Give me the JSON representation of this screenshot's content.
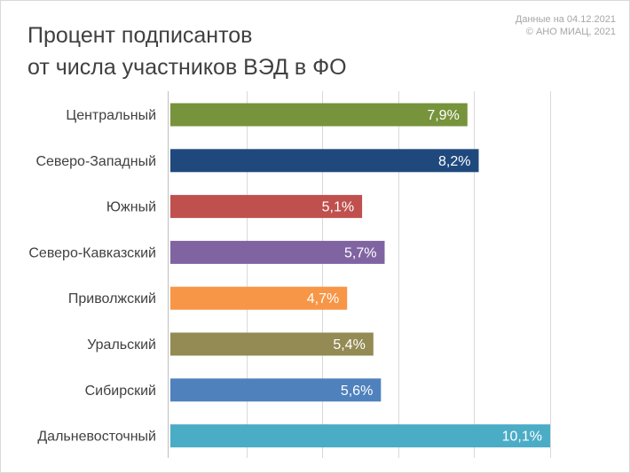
{
  "header": {
    "title_line1": "Процент подписантов",
    "title_line2": "от числа участников ВЭД в ФО",
    "source_line1": "Данные на 04.12.2021",
    "source_line2": "© АНО МИАЦ, 2021"
  },
  "chart_data": {
    "type": "bar",
    "orientation": "horizontal",
    "title": "Процент подписантов от числа участников ВЭД в ФО",
    "categories": [
      "Центральный",
      "Северо-Западный",
      "Южный",
      "Северо-Кавказский",
      "Приволжский",
      "Уральский",
      "Сибирский",
      "Дальневосточный"
    ],
    "values": [
      7.9,
      8.2,
      5.1,
      5.7,
      4.7,
      5.4,
      5.6,
      10.1
    ],
    "value_labels": [
      "7,9%",
      "8,2%",
      "5,1%",
      "5,7%",
      "4,7%",
      "5,4%",
      "5,6%",
      "10,1%"
    ],
    "colors": [
      "#77933c",
      "#1f497d",
      "#c0504d",
      "#8064a2",
      "#f79646",
      "#948a54",
      "#4f81bd",
      "#4bacc6"
    ],
    "xlim": [
      0,
      10.1
    ],
    "grid": true,
    "legend": "none"
  }
}
